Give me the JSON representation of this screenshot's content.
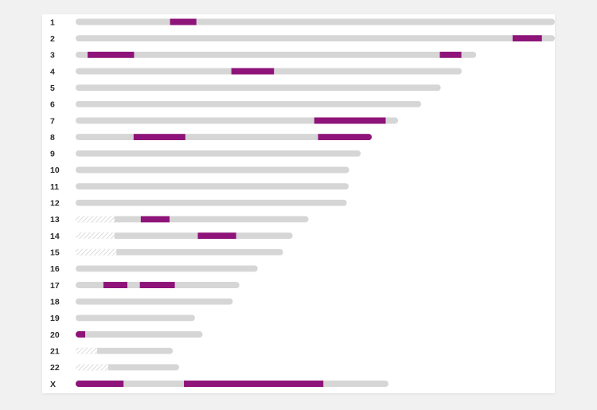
{
  "colors": {
    "chromosome": "#d6d6d6",
    "highlight": "#8e1479",
    "hatch_stroke": "#d3d3d3",
    "hatch_background": "#ffffff",
    "label": "#2b2b2b",
    "card": "#ffffff",
    "page_background": "#f1f1f1"
  },
  "chart_data": {
    "type": "ideogram",
    "title": "",
    "xlabel": "",
    "ylabel": "",
    "chromosomes": [
      {
        "label": "1",
        "length": 1.0,
        "hatch": null,
        "highlights": [
          [
            0.197,
            0.252
          ]
        ]
      },
      {
        "label": "2",
        "length": 1.0,
        "hatch": null,
        "highlights": [
          [
            0.912,
            0.973
          ]
        ]
      },
      {
        "label": "3",
        "length": 0.836,
        "hatch": null,
        "highlights": [
          [
            0.025,
            0.122
          ],
          [
            0.76,
            0.805
          ]
        ]
      },
      {
        "label": "4",
        "length": 0.806,
        "hatch": null,
        "highlights": [
          [
            0.325,
            0.414
          ]
        ]
      },
      {
        "label": "5",
        "length": 0.762,
        "hatch": null,
        "highlights": []
      },
      {
        "label": "6",
        "length": 0.721,
        "hatch": null,
        "highlights": []
      },
      {
        "label": "7",
        "length": 0.673,
        "hatch": null,
        "highlights": [
          [
            0.498,
            0.647
          ]
        ]
      },
      {
        "label": "8",
        "length": 0.618,
        "hatch": null,
        "highlights": [
          [
            0.121,
            0.229
          ],
          [
            0.506,
            0.618
          ]
        ]
      },
      {
        "label": "9",
        "length": 0.595,
        "hatch": null,
        "highlights": []
      },
      {
        "label": "10",
        "length": 0.571,
        "hatch": null,
        "highlights": []
      },
      {
        "label": "11",
        "length": 0.57,
        "hatch": null,
        "highlights": []
      },
      {
        "label": "12",
        "length": 0.566,
        "hatch": null,
        "highlights": []
      },
      {
        "label": "13",
        "length": 0.486,
        "hatch": [
          0,
          0.081
        ],
        "highlights": [
          [
            0.136,
            0.196
          ]
        ]
      },
      {
        "label": "14",
        "length": 0.453,
        "hatch": [
          0,
          0.081
        ],
        "highlights": [
          [
            0.255,
            0.335
          ]
        ]
      },
      {
        "label": "15",
        "length": 0.433,
        "hatch": [
          0,
          0.085
        ],
        "highlights": []
      },
      {
        "label": "16",
        "length": 0.38,
        "hatch": null,
        "highlights": []
      },
      {
        "label": "17",
        "length": 0.342,
        "hatch": null,
        "highlights": [
          [
            0.058,
            0.108
          ],
          [
            0.134,
            0.207
          ]
        ]
      },
      {
        "label": "18",
        "length": 0.328,
        "hatch": null,
        "highlights": []
      },
      {
        "label": "19",
        "length": 0.249,
        "hatch": null,
        "highlights": []
      },
      {
        "label": "20",
        "length": 0.265,
        "hatch": null,
        "highlights": [
          [
            0,
            0.02
          ]
        ]
      },
      {
        "label": "21",
        "length": 0.203,
        "hatch": [
          0,
          0.045
        ],
        "highlights": []
      },
      {
        "label": "22",
        "length": 0.216,
        "hatch": [
          0,
          0.068
        ],
        "highlights": []
      },
      {
        "label": "X",
        "length": 0.653,
        "hatch": null,
        "highlights": [
          [
            0,
            0.1
          ],
          [
            0.226,
            0.517
          ]
        ]
      }
    ]
  }
}
